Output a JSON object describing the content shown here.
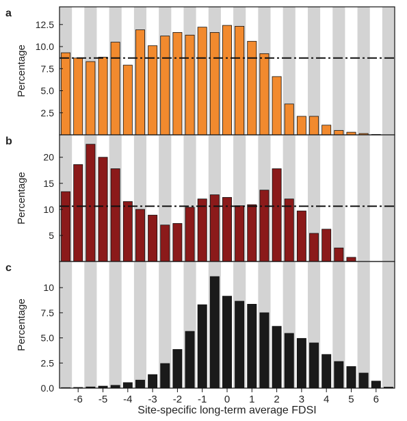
{
  "figure": {
    "xlabel": "Site-specific long-term average FDSI",
    "x_ticks": [
      "-6",
      "-5",
      "-4",
      "-3",
      "-2",
      "-1",
      "0",
      "1",
      "2",
      "3",
      "4",
      "5",
      "6"
    ],
    "x_tick_values": [
      -6,
      -5,
      -4,
      -3,
      -2,
      -1,
      0,
      1,
      2,
      3,
      4,
      5,
      6
    ],
    "xlim": [
      -6.75,
      6.75
    ],
    "bin_width": 0.5,
    "bin_centers": [
      -6.5,
      -6.0,
      -5.5,
      -5.0,
      -4.5,
      -4.0,
      -3.5,
      -3.0,
      -2.5,
      -2.0,
      -1.5,
      -1.0,
      -0.5,
      0.0,
      0.5,
      1.0,
      1.5,
      2.0,
      2.5,
      3.0,
      3.5,
      4.0,
      4.5,
      5.0,
      5.5,
      6.0,
      6.5
    ],
    "shaded_band_color": "#d3d3d3",
    "reference_line_style": "dash-dot"
  },
  "chart_data": [
    {
      "type": "bar",
      "panel_label": "a",
      "ylabel": "Percentage",
      "y_ticks": [
        "2.5",
        "5.0",
        "7.5",
        "10.0",
        "12.5"
      ],
      "y_tick_values": [
        2.5,
        5.0,
        7.5,
        10.0,
        12.5
      ],
      "ylim": [
        0,
        14.5
      ],
      "bar_color": "#f28a2e",
      "reference_line": 8.7,
      "values": [
        9.3,
        8.7,
        8.3,
        8.8,
        10.5,
        7.9,
        11.9,
        10.1,
        11.2,
        11.6,
        11.3,
        12.2,
        11.6,
        12.4,
        12.3,
        10.6,
        9.2,
        6.6,
        3.5,
        2.1,
        2.1,
        1.1,
        0.5,
        0.3,
        0.15,
        0.05,
        0.0
      ]
    },
    {
      "type": "bar",
      "panel_label": "b",
      "ylabel": "Percentage",
      "y_ticks": [
        "5",
        "10",
        "15",
        "20"
      ],
      "y_tick_values": [
        5,
        10,
        15,
        20
      ],
      "ylim": [
        0,
        24.3
      ],
      "bar_color": "#8b1a1a",
      "reference_line": 10.6,
      "values": [
        13.4,
        18.6,
        22.5,
        20.0,
        17.8,
        11.5,
        10.0,
        8.9,
        7.0,
        7.3,
        10.4,
        12.0,
        12.8,
        12.3,
        10.7,
        10.9,
        13.7,
        17.8,
        12.0,
        9.7,
        5.4,
        6.2,
        2.6,
        0.8,
        0.0,
        0.0,
        0.0
      ]
    },
    {
      "type": "bar",
      "panel_label": "c",
      "ylabel": "Percentage",
      "y_ticks": [
        "0.0",
        "2.5",
        "5.0",
        "7.5",
        "10"
      ],
      "y_tick_values": [
        0,
        2.5,
        5.0,
        7.5,
        10
      ],
      "ylim": [
        0,
        12.6
      ],
      "bar_color": "#1a1a1a",
      "reference_line": null,
      "values": [
        0.05,
        0.07,
        0.12,
        0.2,
        0.28,
        0.55,
        0.8,
        1.35,
        2.45,
        3.85,
        5.65,
        8.3,
        11.1,
        9.15,
        8.65,
        8.35,
        7.5,
        6.15,
        5.45,
        4.95,
        4.5,
        3.35,
        2.65,
        2.15,
        1.5,
        0.7,
        0.1
      ]
    }
  ]
}
